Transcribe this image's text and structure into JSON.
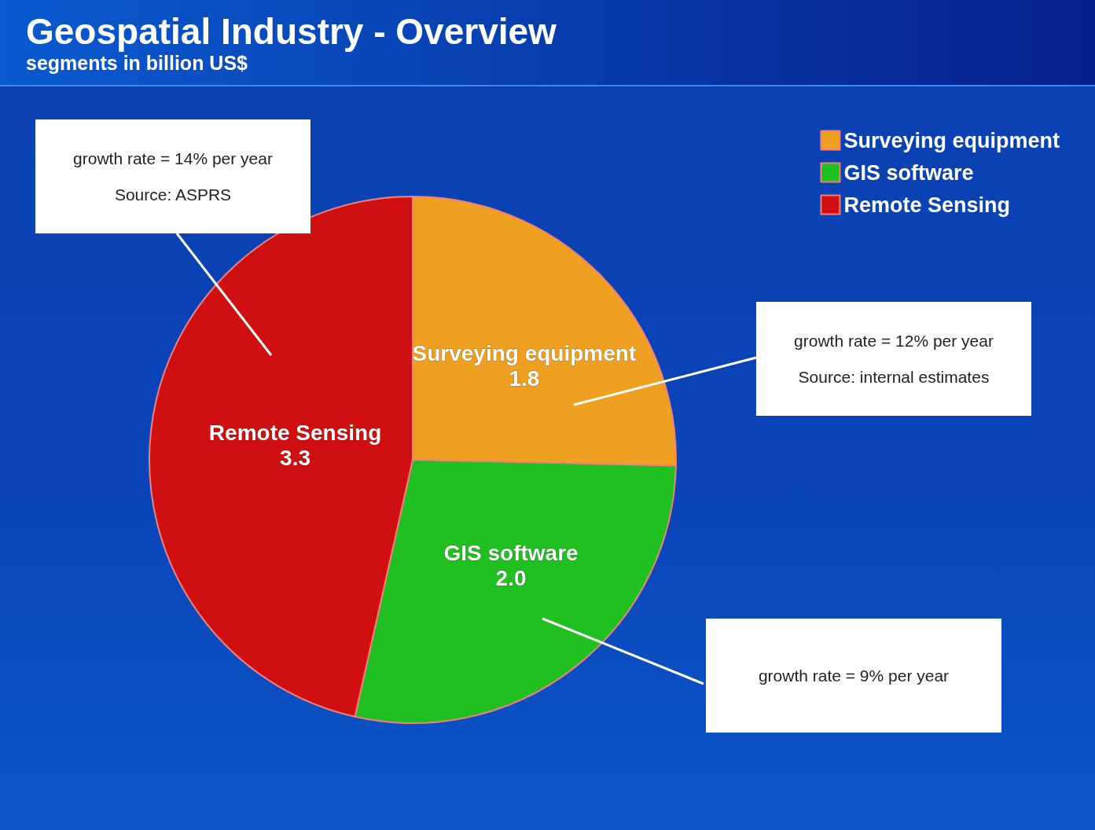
{
  "chart_data": {
    "type": "pie",
    "title": "Geospatial Industry - Overview",
    "subtitle": "segments in billion US$",
    "categories": [
      "Surveying equipment",
      "GIS software",
      "Remote Sensing"
    ],
    "values": [
      1.8,
      2.0,
      3.3
    ],
    "colors": [
      "#f0a020",
      "#20c020",
      "#d01010"
    ],
    "value_labels": [
      "1.8",
      "2.0",
      "3.3"
    ],
    "legend": "top right",
    "annotations": [
      "growth rate = 14% per year",
      "Source: ASPRS",
      "growth rate = 12% per year",
      "Source: internal estimates",
      "growth rate = 9% per year"
    ]
  }
}
